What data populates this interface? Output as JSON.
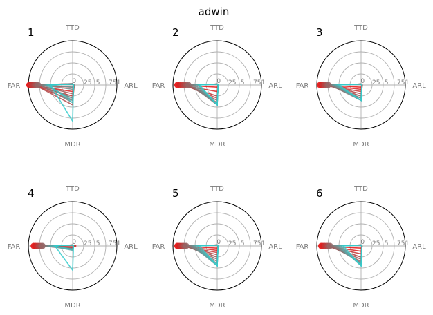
{
  "figure_title": "adwin",
  "colors": {
    "low": "#e81010",
    "high": "#33cccc",
    "grid": "#b0b0b0",
    "label": "#7a7a7a"
  },
  "chart_data": {
    "type": "radar",
    "axes": [
      "TTD",
      "ARL",
      "MDR",
      "FAR"
    ],
    "tick_labels": [
      "0",
      "25",
      ".5",
      ".75",
      "1"
    ],
    "rlim": [
      0,
      1
    ],
    "grid": true,
    "panels": [
      {
        "label": "1",
        "series_count": 14,
        "series": [
          {
            "values": [
              0.02,
              0.02,
              0.05,
              0.98
            ]
          },
          {
            "values": [
              0.02,
              0.03,
              0.15,
              0.96
            ]
          },
          {
            "values": [
              0.03,
              0.02,
              0.25,
              0.93
            ]
          },
          {
            "values": [
              0.02,
              0.04,
              0.35,
              0.9
            ]
          },
          {
            "values": [
              0.02,
              0.02,
              0.45,
              0.86
            ]
          },
          {
            "values": [
              0.03,
              0.03,
              0.2,
              0.82
            ]
          },
          {
            "values": [
              0.02,
              0.02,
              0.3,
              0.78
            ]
          },
          {
            "values": [
              0.02,
              0.03,
              0.4,
              0.74
            ]
          },
          {
            "values": [
              0.02,
              0.02,
              0.1,
              0.7
            ]
          },
          {
            "values": [
              0.03,
              0.02,
              0.3,
              0.66
            ]
          },
          {
            "values": [
              0.02,
              0.02,
              0.05,
              0.62
            ]
          },
          {
            "values": [
              0.02,
              0.03,
              0.35,
              0.58
            ]
          },
          {
            "values": [
              0.02,
              0.02,
              0.4,
              0.55
            ]
          },
          {
            "values": [
              0.02,
              0.02,
              0.82,
              0.5
            ]
          }
        ]
      },
      {
        "label": "2",
        "series_count": 12,
        "series": [
          {
            "values": [
              0.02,
              0.02,
              0.05,
              0.9
            ]
          },
          {
            "values": [
              0.02,
              0.02,
              0.15,
              0.85
            ]
          },
          {
            "values": [
              0.02,
              0.02,
              0.25,
              0.8
            ]
          },
          {
            "values": [
              0.02,
              0.02,
              0.3,
              0.75
            ]
          },
          {
            "values": [
              0.02,
              0.02,
              0.35,
              0.7
            ]
          },
          {
            "values": [
              0.02,
              0.02,
              0.4,
              0.65
            ]
          },
          {
            "values": [
              0.02,
              0.02,
              0.45,
              0.6
            ]
          },
          {
            "values": [
              0.02,
              0.02,
              0.45,
              0.55
            ]
          },
          {
            "values": [
              0.02,
              0.02,
              0.45,
              0.5
            ]
          },
          {
            "values": [
              0.02,
              0.02,
              0.45,
              0.45
            ]
          },
          {
            "values": [
              0.02,
              0.02,
              0.45,
              0.42
            ]
          },
          {
            "values": [
              0.02,
              0.02,
              0.45,
              0.4
            ]
          }
        ]
      },
      {
        "label": "3",
        "series_count": 12,
        "series": [
          {
            "values": [
              0.02,
              0.02,
              0.05,
              0.93
            ]
          },
          {
            "values": [
              0.02,
              0.02,
              0.1,
              0.9
            ]
          },
          {
            "values": [
              0.02,
              0.02,
              0.15,
              0.86
            ]
          },
          {
            "values": [
              0.02,
              0.03,
              0.2,
              0.82
            ]
          },
          {
            "values": [
              0.02,
              0.02,
              0.25,
              0.78
            ]
          },
          {
            "values": [
              0.02,
              0.02,
              0.3,
              0.74
            ]
          },
          {
            "values": [
              0.02,
              0.02,
              0.35,
              0.7
            ]
          },
          {
            "values": [
              0.02,
              0.02,
              0.3,
              0.66
            ]
          },
          {
            "values": [
              0.02,
              0.02,
              0.35,
              0.62
            ]
          },
          {
            "values": [
              0.02,
              0.02,
              0.35,
              0.58
            ]
          },
          {
            "values": [
              0.02,
              0.02,
              0.35,
              0.54
            ]
          },
          {
            "values": [
              0.02,
              0.02,
              0.35,
              0.5
            ]
          }
        ]
      },
      {
        "label": "4",
        "series_count": 12,
        "series": [
          {
            "values": [
              0.02,
              0.08,
              0.02,
              0.88
            ]
          },
          {
            "values": [
              0.02,
              0.06,
              0.03,
              0.84
            ]
          },
          {
            "values": [
              0.02,
              0.05,
              0.04,
              0.8
            ]
          },
          {
            "values": [
              0.02,
              0.04,
              0.05,
              0.76
            ]
          },
          {
            "values": [
              0.02,
              0.03,
              0.06,
              0.72
            ]
          },
          {
            "values": [
              0.02,
              0.03,
              0.07,
              0.68
            ]
          },
          {
            "values": [
              0.02,
              0.02,
              0.08,
              0.64
            ]
          },
          {
            "values": [
              0.02,
              0.02,
              0.06,
              0.6
            ]
          },
          {
            "values": [
              0.02,
              0.02,
              0.08,
              0.55
            ]
          },
          {
            "values": [
              0.02,
              0.02,
              0.1,
              0.5
            ]
          },
          {
            "values": [
              0.02,
              0.02,
              0.08,
              0.45
            ]
          },
          {
            "values": [
              0.02,
              0.02,
              0.55,
              0.4
            ]
          }
        ]
      },
      {
        "label": "5",
        "series_count": 12,
        "series": [
          {
            "values": [
              0.02,
              0.02,
              0.05,
              0.9
            ]
          },
          {
            "values": [
              0.02,
              0.03,
              0.1,
              0.86
            ]
          },
          {
            "values": [
              0.02,
              0.02,
              0.15,
              0.82
            ]
          },
          {
            "values": [
              0.02,
              0.02,
              0.2,
              0.78
            ]
          },
          {
            "values": [
              0.02,
              0.02,
              0.25,
              0.74
            ]
          },
          {
            "values": [
              0.02,
              0.02,
              0.3,
              0.7
            ]
          },
          {
            "values": [
              0.02,
              0.02,
              0.35,
              0.65
            ]
          },
          {
            "values": [
              0.02,
              0.02,
              0.4,
              0.6
            ]
          },
          {
            "values": [
              0.02,
              0.02,
              0.45,
              0.55
            ]
          },
          {
            "values": [
              0.02,
              0.02,
              0.45,
              0.5
            ]
          },
          {
            "values": [
              0.02,
              0.02,
              0.45,
              0.45
            ]
          },
          {
            "values": [
              0.02,
              0.02,
              0.45,
              0.4
            ]
          }
        ]
      },
      {
        "label": "6",
        "series_count": 12,
        "series": [
          {
            "values": [
              0.02,
              0.02,
              0.05,
              0.9
            ]
          },
          {
            "values": [
              0.02,
              0.02,
              0.12,
              0.86
            ]
          },
          {
            "values": [
              0.02,
              0.02,
              0.18,
              0.82
            ]
          },
          {
            "values": [
              0.02,
              0.02,
              0.25,
              0.78
            ]
          },
          {
            "values": [
              0.02,
              0.02,
              0.3,
              0.74
            ]
          },
          {
            "values": [
              0.02,
              0.02,
              0.35,
              0.7
            ]
          },
          {
            "values": [
              0.02,
              0.02,
              0.38,
              0.65
            ]
          },
          {
            "values": [
              0.02,
              0.02,
              0.4,
              0.6
            ]
          },
          {
            "values": [
              0.02,
              0.02,
              0.42,
              0.55
            ]
          },
          {
            "values": [
              0.02,
              0.02,
              0.45,
              0.5
            ]
          },
          {
            "values": [
              0.02,
              0.02,
              0.45,
              0.45
            ]
          },
          {
            "values": [
              0.02,
              0.02,
              0.45,
              0.4
            ]
          }
        ]
      }
    ]
  }
}
